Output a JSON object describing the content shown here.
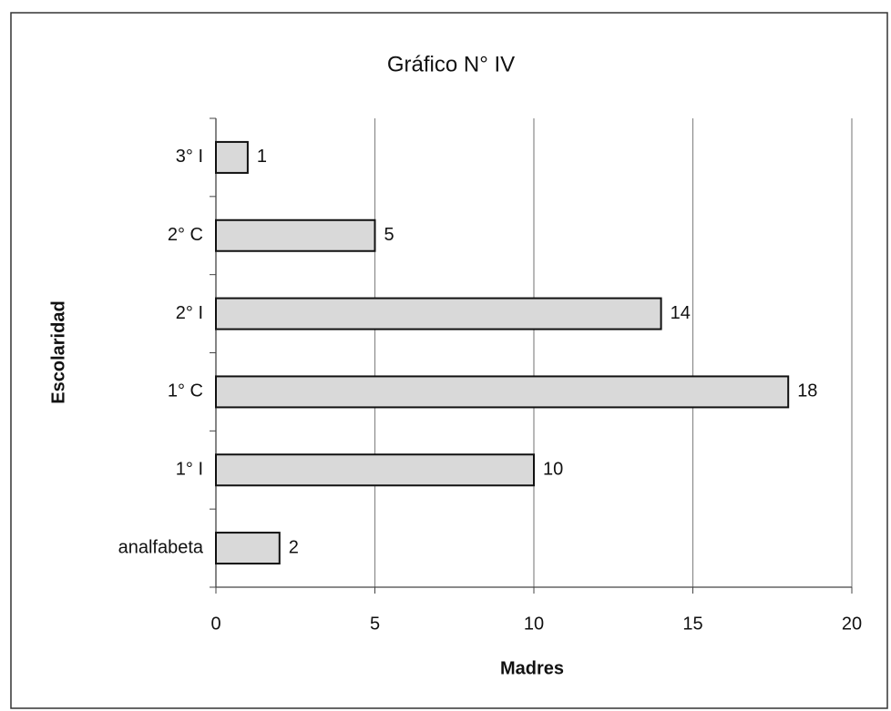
{
  "chart_data": {
    "type": "bar",
    "orientation": "horizontal",
    "title": "Gráfico N° IV",
    "x_label": "Madres",
    "y_label": "Escolaridad",
    "categories": [
      "analfabeta",
      "1° I",
      "1° C",
      "2° I",
      "2° C",
      "3° I"
    ],
    "values": [
      2,
      10,
      18,
      14,
      5,
      1
    ],
    "color": "#d9d9d9",
    "xlim": [
      0,
      20
    ],
    "xticks": [
      0,
      5,
      10,
      15,
      20
    ],
    "grid": true
  }
}
